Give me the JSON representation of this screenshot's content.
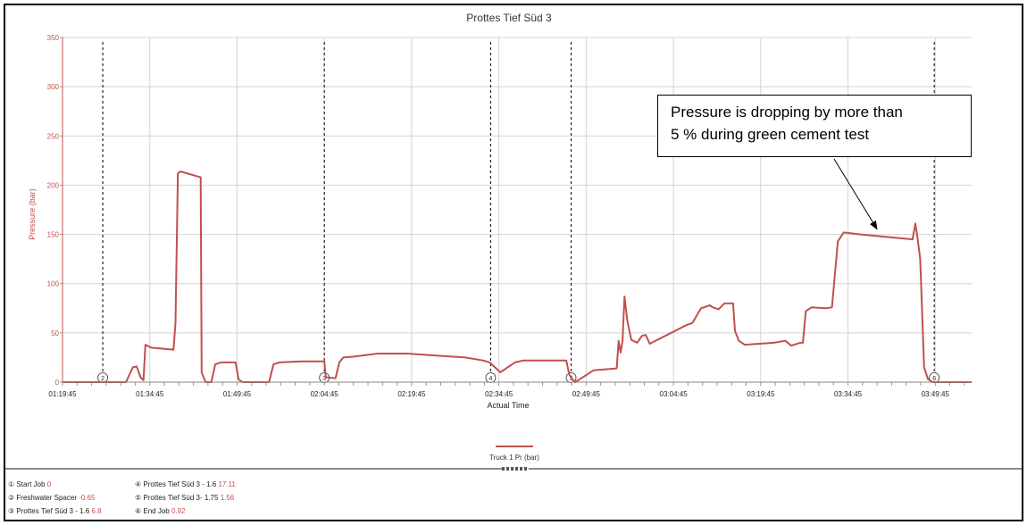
{
  "chart_data": {
    "type": "line",
    "title": "Prottes Tief Süd 3",
    "xlabel": "Actual Time",
    "ylabel": "Pressure (bar)",
    "ylim": [
      0,
      350
    ],
    "xlim": [
      "01:19:45",
      "03:56:00"
    ],
    "y_ticks": [
      0,
      50,
      100,
      150,
      200,
      250,
      300,
      350
    ],
    "x_ticks": [
      "01:19:45",
      "01:34:45",
      "01:49:45",
      "02:04:45",
      "02:19:45",
      "02:34:45",
      "02:49:45",
      "03:04:45",
      "03:19:45",
      "03:34:45",
      "03:49:45"
    ],
    "grid": true,
    "legend_position": "bottom",
    "series": [
      {
        "name": "Truck 1 Pr (bar)",
        "color": "#c0504d",
        "points": [
          [
            "01:19:45",
            0
          ],
          [
            "01:30:40",
            0
          ],
          [
            "01:31:50",
            15
          ],
          [
            "01:32:30",
            16
          ],
          [
            "01:33:10",
            5
          ],
          [
            "01:33:40",
            2
          ],
          [
            "01:34:00",
            38
          ],
          [
            "01:35:00",
            35
          ],
          [
            "01:38:50",
            33
          ],
          [
            "01:39:10",
            60
          ],
          [
            "01:39:35",
            212
          ],
          [
            "01:40:00",
            214
          ],
          [
            "01:43:30",
            208
          ],
          [
            "01:43:40",
            10
          ],
          [
            "01:44:20",
            0
          ],
          [
            "01:45:20",
            0
          ],
          [
            "01:46:00",
            18
          ],
          [
            "01:47:00",
            20
          ],
          [
            "01:49:30",
            20
          ],
          [
            "01:50:00",
            3
          ],
          [
            "01:50:40",
            0
          ],
          [
            "01:55:15",
            0
          ],
          [
            "01:56:00",
            18
          ],
          [
            "01:57:00",
            20
          ],
          [
            "02:00:50",
            21
          ],
          [
            "02:04:45",
            21
          ],
          [
            "02:05:00",
            5
          ],
          [
            "02:06:40",
            4
          ],
          [
            "02:07:20",
            20
          ],
          [
            "02:08:00",
            25
          ],
          [
            "02:10:00",
            26
          ],
          [
            "02:14:00",
            29
          ],
          [
            "02:19:00",
            29
          ],
          [
            "02:24:00",
            27
          ],
          [
            "02:29:00",
            25
          ],
          [
            "02:32:00",
            22
          ],
          [
            "02:33:10",
            20
          ],
          [
            "02:35:00",
            10
          ],
          [
            "02:36:00",
            14
          ],
          [
            "02:37:30",
            20
          ],
          [
            "02:39:00",
            22
          ],
          [
            "02:43:00",
            22
          ],
          [
            "02:46:20",
            22
          ],
          [
            "02:46:50",
            8
          ],
          [
            "02:47:30",
            2
          ],
          [
            "02:47:50",
            0
          ],
          [
            "02:48:40",
            3
          ],
          [
            "02:51:00",
            12
          ],
          [
            "02:55:00",
            14
          ],
          [
            "02:55:20",
            42
          ],
          [
            "02:55:40",
            30
          ],
          [
            "02:56:00",
            42
          ],
          [
            "02:56:20",
            87
          ],
          [
            "02:56:50",
            62
          ],
          [
            "02:57:30",
            43
          ],
          [
            "02:58:30",
            40
          ],
          [
            "02:59:20",
            47
          ],
          [
            "03:00:00",
            48
          ],
          [
            "03:00:40",
            39
          ],
          [
            "03:03:00",
            46
          ],
          [
            "03:07:00",
            58
          ],
          [
            "03:08:00",
            60
          ],
          [
            "03:09:30",
            75
          ],
          [
            "03:11:00",
            78
          ],
          [
            "03:11:30",
            76
          ],
          [
            "03:12:30",
            74
          ],
          [
            "03:13:30",
            80
          ],
          [
            "03:15:00",
            80
          ],
          [
            "03:15:20",
            52
          ],
          [
            "03:16:00",
            42
          ],
          [
            "03:17:00",
            38
          ],
          [
            "03:22:00",
            40
          ],
          [
            "03:24:00",
            42
          ],
          [
            "03:25:00",
            37
          ],
          [
            "03:26:30",
            40
          ],
          [
            "03:27:00",
            40
          ],
          [
            "03:27:30",
            72
          ],
          [
            "03:28:30",
            76
          ],
          [
            "03:31:00",
            75
          ],
          [
            "03:32:00",
            76
          ],
          [
            "03:33:00",
            143
          ],
          [
            "03:34:00",
            152
          ],
          [
            "03:37:00",
            150
          ],
          [
            "03:45:50",
            145
          ],
          [
            "03:46:20",
            161
          ],
          [
            "03:46:40",
            148
          ],
          [
            "03:47:10",
            125
          ],
          [
            "03:47:50",
            15
          ],
          [
            "03:48:30",
            3
          ],
          [
            "03:49:20",
            0
          ],
          [
            "03:56:00",
            0
          ]
        ]
      }
    ],
    "event_markers": [
      {
        "id": "2",
        "x": "01:26:40"
      },
      {
        "id": "3",
        "x": "02:04:45"
      },
      {
        "id": "4",
        "x": "02:33:20"
      },
      {
        "id": "5",
        "x": "02:47:10"
      },
      {
        "id": "6",
        "x": "03:49:35"
      }
    ],
    "annotations": [
      {
        "lines": [
          "Pressure is dropping by more than",
          "5 % during green cement test"
        ],
        "target": [
          "03:39:45",
          150
        ]
      }
    ]
  },
  "events_panel": {
    "items": [
      {
        "label": "① Start Job",
        "value": "0"
      },
      {
        "label": "② Freshwater Spacer",
        "value": "-0.65"
      },
      {
        "label": "③ Prottes Tief Süd 3 - 1.6",
        "value": "6.8"
      },
      {
        "label": "④ Prottes Tief Süd 3 - 1.6",
        "value": "17.11"
      },
      {
        "label": "⑤ Prottes Tief Süd 3- 1.75",
        "value": "1.56"
      },
      {
        "label": "⑥ End Job",
        "value": "0.92"
      }
    ]
  }
}
